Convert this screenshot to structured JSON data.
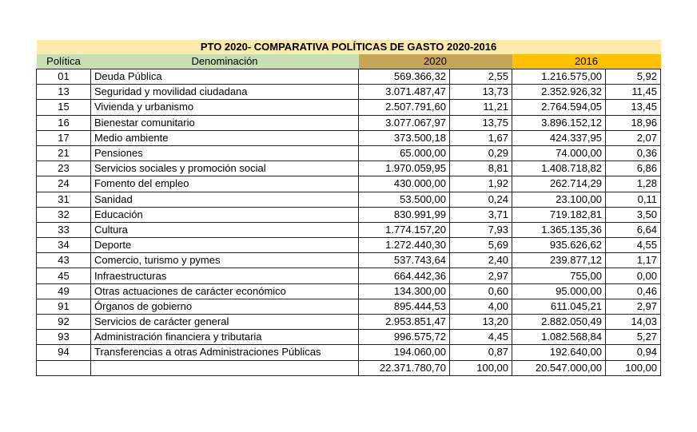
{
  "title": "PTO 2020- COMPARATIVA POLÍTICAS DE GASTO 2020-2016",
  "headers": {
    "politica": "Política",
    "denominacion": "Denominación",
    "year_a": "2020",
    "year_b": "2016"
  },
  "colors": {
    "title_bg": "#fde9a9",
    "left_header_bg": "#c6e0b4",
    "header_2020_bg": "#c9a558",
    "header_2016_bg": "#ffc000"
  },
  "rows": [
    {
      "code": "01",
      "name": "Deuda Pública",
      "v2020": "569.366,32",
      "p2020": "2,55",
      "v2016": "1.216.575,00",
      "p2016": "5,92"
    },
    {
      "code": "13",
      "name": "Seguridad y movilidad ciudadana",
      "v2020": "3.071.487,47",
      "p2020": "13,73",
      "v2016": "2.352.926,32",
      "p2016": "11,45"
    },
    {
      "code": "15",
      "name": "Vivienda y urbanismo",
      "v2020": "2.507.791,60",
      "p2020": "11,21",
      "v2016": "2.764.594,05",
      "p2016": "13,45"
    },
    {
      "code": "16",
      "name": "Bienestar comunitario",
      "v2020": "3.077.067,97",
      "p2020": "13,75",
      "v2016": "3.896.152,12",
      "p2016": "18,96"
    },
    {
      "code": "17",
      "name": "Medio ambiente",
      "v2020": "373.500,18",
      "p2020": "1,67",
      "v2016": "424.337,95",
      "p2016": "2,07"
    },
    {
      "code": "21",
      "name": "Pensiones",
      "v2020": "65.000,00",
      "p2020": "0,29",
      "v2016": "74.000,00",
      "p2016": "0,36"
    },
    {
      "code": "23",
      "name": "Servicios sociales y promoción social",
      "v2020": "1.970.059,95",
      "p2020": "8,81",
      "v2016": "1.408.718,82",
      "p2016": "6,86"
    },
    {
      "code": "24",
      "name": "Fomento del empleo",
      "v2020": "430.000,00",
      "p2020": "1,92",
      "v2016": "262.714,29",
      "p2016": "1,28"
    },
    {
      "code": "31",
      "name": "Sanidad",
      "v2020": "53.500,00",
      "p2020": "0,24",
      "v2016": "23.100,00",
      "p2016": "0,11"
    },
    {
      "code": "32",
      "name": "Educación",
      "v2020": "830.991,99",
      "p2020": "3,71",
      "v2016": "719.182,81",
      "p2016": "3,50"
    },
    {
      "code": "33",
      "name": "Cultura",
      "v2020": "1.774.157,20",
      "p2020": "7,93",
      "v2016": "1.365.135,36",
      "p2016": "6,64"
    },
    {
      "code": "34",
      "name": "Deporte",
      "v2020": "1.272.440,30",
      "p2020": "5,69",
      "v2016": "935.626,62",
      "p2016": "4,55"
    },
    {
      "code": "43",
      "name": "Comercio, turismo y pymes",
      "v2020": "537.743,64",
      "p2020": "2,40",
      "v2016": "239.877,12",
      "p2016": "1,17"
    },
    {
      "code": "45",
      "name": "Infraestructuras",
      "v2020": "664.442,36",
      "p2020": "2,97",
      "v2016": "755,00",
      "p2016": "0,00"
    },
    {
      "code": "49",
      "name": "Otras actuaciones de carácter económico",
      "v2020": "134.300,00",
      "p2020": "0,60",
      "v2016": "95.000,00",
      "p2016": "0,46"
    },
    {
      "code": "91",
      "name": "Órganos de gobierno",
      "v2020": "895.444,53",
      "p2020": "4,00",
      "v2016": "611.045,21",
      "p2016": "2,97"
    },
    {
      "code": "92",
      "name": "Servicios de carácter general",
      "v2020": "2.953.851,47",
      "p2020": "13,20",
      "v2016": "2.882.050,49",
      "p2016": "14,03"
    },
    {
      "code": "93",
      "name": "Administración financiera y tributaria",
      "v2020": "996.575,72",
      "p2020": "4,45",
      "v2016": "1.082.568,84",
      "p2016": "5,27"
    },
    {
      "code": "94",
      "name": "Transferencias a otras Administraciones Públicas",
      "v2020": "194.060,00",
      "p2020": "0,87",
      "v2016": "192.640,00",
      "p2016": "0,94"
    }
  ],
  "total": {
    "v2020": "22.371.780,70",
    "p2020": "100,00",
    "v2016": "20.547.000,00",
    "p2016": "100,00"
  }
}
